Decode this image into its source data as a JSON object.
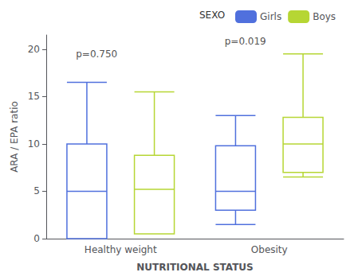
{
  "chart_data": {
    "type": "box",
    "xlabel": "NUTRITIONAL STATUS",
    "ylabel": "ARA / EPA ratio",
    "categories": [
      "Healthy weight",
      "Obesity"
    ],
    "series": [
      {
        "name": "Girls",
        "values": [
          {
            "whisker_low": 0.0,
            "q1": 0.0,
            "median": 5.0,
            "q3": 10.0,
            "whisker_high": 16.5
          },
          {
            "whisker_low": 1.5,
            "q1": 3.0,
            "median": 5.0,
            "q3": 9.8,
            "whisker_high": 13.0
          }
        ]
      },
      {
        "name": "Boys",
        "values": [
          {
            "whisker_low": 0.5,
            "q1": 0.5,
            "median": 5.2,
            "q3": 8.8,
            "whisker_high": 15.5
          },
          {
            "whisker_low": 6.5,
            "q1": 7.0,
            "median": 10.0,
            "q3": 12.8,
            "whisker_high": 19.5
          }
        ]
      }
    ],
    "annotations": [
      {
        "text": "p=0.750",
        "x": "Healthy weight",
        "y": 19.5
      },
      {
        "text": "p=0.019",
        "x": "Obesity",
        "y": 20.8
      }
    ],
    "legend_title": "SEXO",
    "legend": "upper right",
    "ylim": [
      0,
      21.5
    ],
    "yticks": [
      0,
      5,
      10,
      15,
      20
    ],
    "grid": false
  }
}
